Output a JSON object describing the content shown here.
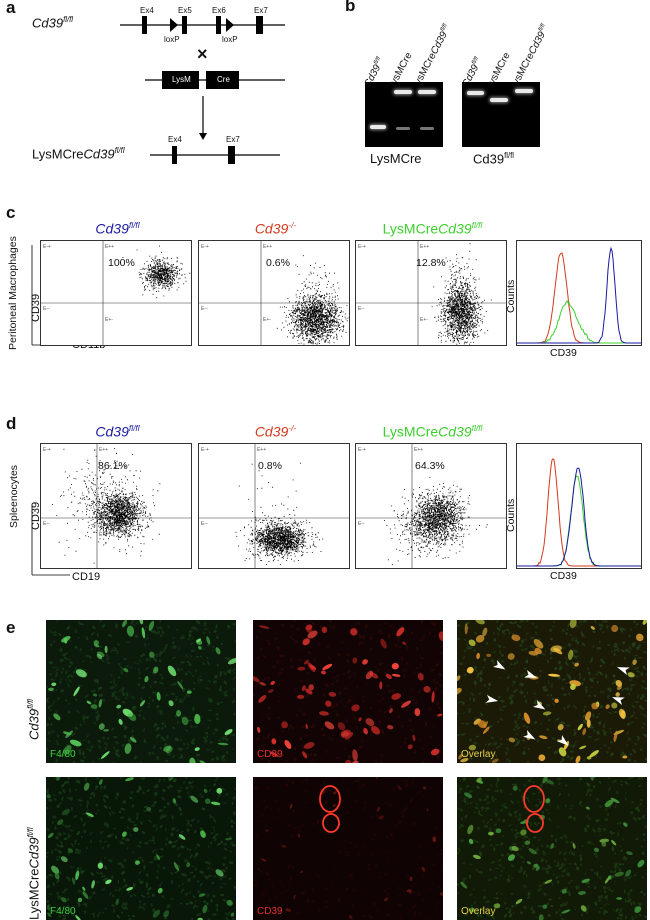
{
  "panels": {
    "a": "a",
    "b": "b",
    "c": "c",
    "d": "d",
    "e": "e"
  },
  "a": {
    "top_allele": "Cd39",
    "top_allele_sup": "fl/fl",
    "exons": [
      "Ex4",
      "Ex5",
      "Ex6",
      "Ex7"
    ],
    "loxp": "loxP",
    "cross": "×",
    "lysm": "LysM",
    "cre": "Cre",
    "bottom_prefix": "LysMCre",
    "bottom_allele": "Cd39",
    "bottom_sup": "fl/fl",
    "bottom_exons": [
      "Ex4",
      "Ex7"
    ]
  },
  "b": {
    "lane1": "Cd39",
    "lane1_sup": "fl/fl",
    "lane2": "LysMCre",
    "lane3_prefix": "LysMCre",
    "lane3": "Cd39",
    "lane3_sup": "fl/fl",
    "gel1_caption": "LysMCre",
    "gel2_caption": "Cd39",
    "gel2_sup": "fl/fl"
  },
  "c": {
    "col1": "Cd39",
    "col1_sup": "fl/fl",
    "col1_color": "#1a1aa0",
    "col2": "Cd39",
    "col2_sup": "-/-",
    "col2_color": "#d23a1e",
    "col3_prefix": "LysMCre",
    "col3": "Cd39",
    "col3_sup": "fl/fl",
    "col3_color": "#3ccf2e",
    "row_label": "Peritoneal Macrophages",
    "yaxis": "CD39",
    "xaxis": "CD11b",
    "pct": [
      "100%",
      "0.6%",
      "12.8%"
    ],
    "hist_y": "Counts",
    "hist_x": "CD39",
    "gates": [
      "E-+",
      "E++",
      "E--",
      "E+-"
    ]
  },
  "d": {
    "col1": "Cd39",
    "col1_sup": "fl/fl",
    "col2": "Cd39",
    "col2_sup": "-/-",
    "col3_prefix": "LysMCre",
    "col3": "Cd39",
    "col3_sup": "fl/fl",
    "row_label": "Spleenocytes",
    "yaxis": "CD39",
    "xaxis": "CD19",
    "pct": [
      "86.1%",
      "0.8%",
      "64.3%"
    ],
    "hist_y": "Counts",
    "hist_x": "CD39"
  },
  "e": {
    "row1_label": "Cd39",
    "row1_sup": "fl/fl",
    "row2_prefix": "LysMCre",
    "row2_label": "Cd39",
    "row2_sup": "fl/fl",
    "labels": [
      "F4/80",
      "CD39",
      "Overlay"
    ],
    "label_colors": [
      "#3fd23f",
      "#e0302a",
      "#e8d04a"
    ]
  }
}
